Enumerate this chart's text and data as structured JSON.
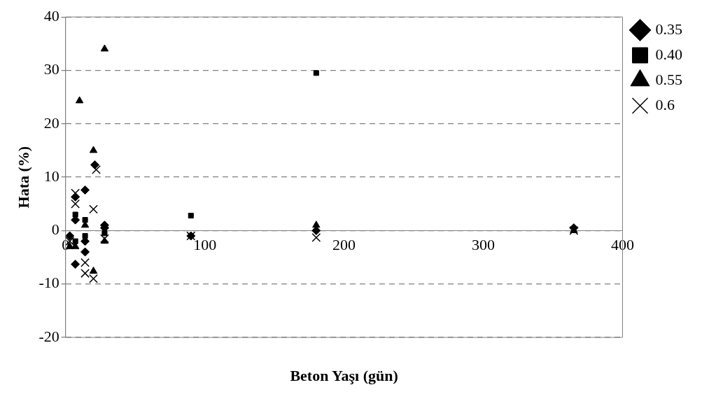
{
  "chart_data": {
    "type": "scatter",
    "xlabel": "Beton Yaşı (gün)",
    "ylabel": "Hata (%)",
    "xlim": [
      0,
      400
    ],
    "xticks": [
      0,
      100,
      200,
      300,
      400
    ],
    "ylim": [
      -20,
      40
    ],
    "yticks": [
      -20,
      -10,
      0,
      10,
      20,
      30,
      40
    ],
    "grid": "y",
    "legend": "top right",
    "series": [
      {
        "name": "0.35",
        "color": "#000000",
        "marker": "diamond",
        "x": [
          7,
          14,
          3,
          7,
          14,
          21,
          7,
          14,
          28,
          28,
          90,
          180,
          365
        ],
        "values": [
          6.3,
          7.6,
          -1,
          -6.3,
          -4,
          12.3,
          2,
          -2,
          1,
          0.5,
          -1,
          0,
          0.5
        ]
      },
      {
        "name": "0.40",
        "color": "#000000",
        "marker": "square",
        "x": [
          180,
          90,
          7,
          14,
          14,
          7,
          28
        ],
        "values": [
          29.5,
          2.8,
          3,
          2,
          -1,
          -2,
          -0.5
        ]
      },
      {
        "name": "0.55",
        "color": "#000000",
        "marker": "triangle",
        "x": [
          28,
          10,
          20,
          3,
          7,
          14,
          28,
          20,
          180,
          365
        ],
        "values": [
          34,
          24.3,
          15,
          -3,
          -3,
          1,
          -2,
          -7.6,
          1,
          0
        ]
      },
      {
        "name": "0.6",
        "color": "#000000",
        "marker": "cross",
        "x": [
          7,
          7,
          22,
          20,
          14,
          28,
          20,
          3,
          14,
          90,
          180,
          365
        ],
        "values": [
          7,
          5,
          11.4,
          4,
          -6,
          -1.5,
          -9,
          -2,
          -8,
          -1,
          -1.3,
          0
        ]
      }
    ]
  }
}
